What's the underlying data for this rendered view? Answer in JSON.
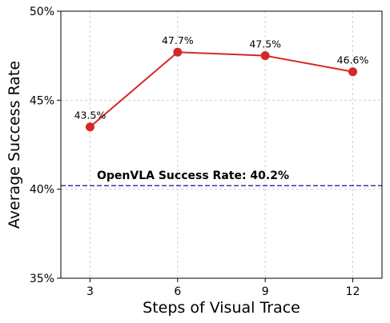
{
  "chart_data": {
    "type": "line",
    "xlabel": "Steps of Visual Trace",
    "ylabel": "Average Success Rate",
    "x": [
      3,
      6,
      9,
      12
    ],
    "xticks": [
      "3",
      "6",
      "9",
      "12"
    ],
    "xlim": [
      2,
      13
    ],
    "ylim": [
      35,
      50
    ],
    "yticks": [
      "35%",
      "40%",
      "45%",
      "50%"
    ],
    "series": [
      {
        "values": [
          43.5,
          47.7,
          47.5,
          46.6
        ],
        "labels": [
          "43.5%",
          "47.7%",
          "47.5%",
          "46.6%"
        ],
        "color": "#d62728"
      }
    ],
    "reference_line": {
      "value": 40.2,
      "label": "OpenVLA Success Rate: 40.2%",
      "color": "#3333aa",
      "style": "dashed"
    },
    "grid": true
  }
}
